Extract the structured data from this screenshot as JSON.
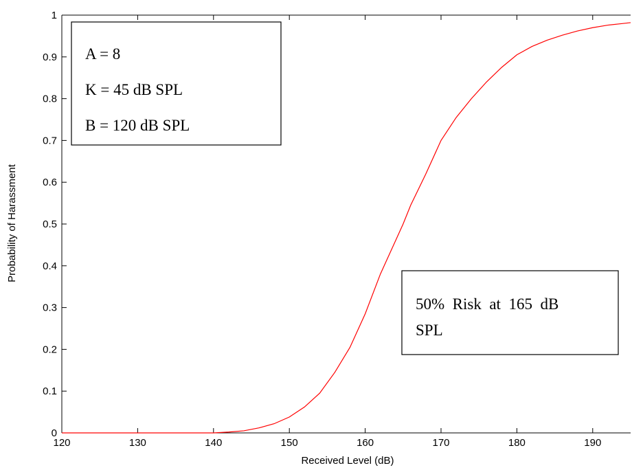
{
  "chart_data": {
    "type": "line",
    "title": "",
    "xlabel": "Received Level (dB)",
    "ylabel": "Probability of Harassment",
    "xlim": [
      120,
      195
    ],
    "ylim": [
      0,
      1
    ],
    "xticks": [
      120,
      130,
      140,
      150,
      160,
      170,
      180,
      190
    ],
    "yticks": [
      0,
      0.1,
      0.2,
      0.3,
      0.4,
      0.5,
      0.6,
      0.7,
      0.8,
      0.9,
      1
    ],
    "xtick_labels": [
      "120",
      "130",
      "140",
      "150",
      "160",
      "170",
      "180",
      "190"
    ],
    "ytick_labels": [
      "0",
      "0.1",
      "0.2",
      "0.3",
      "0.4",
      "0.5",
      "0.6",
      "0.7",
      "0.8",
      "0.9",
      "1"
    ],
    "grid": false,
    "series": [
      {
        "color": "#ff0000",
        "x": [
          120,
          125,
          130,
          135,
          140,
          142,
          144,
          146,
          148,
          150,
          152,
          154,
          156,
          158,
          160,
          162,
          164,
          165,
          166,
          168,
          170,
          172,
          174,
          176,
          178,
          180,
          182,
          184,
          186,
          188,
          190,
          192,
          194,
          195
        ],
        "y": [
          0.0,
          0.0,
          0.0,
          0.0,
          0.0,
          0.002,
          0.005,
          0.012,
          0.022,
          0.038,
          0.062,
          0.095,
          0.145,
          0.205,
          0.285,
          0.38,
          0.46,
          0.5,
          0.545,
          0.62,
          0.7,
          0.755,
          0.8,
          0.84,
          0.875,
          0.905,
          0.925,
          0.94,
          0.952,
          0.962,
          0.97,
          0.976,
          0.98,
          0.982
        ]
      }
    ],
    "annotations": [
      {
        "id": "params",
        "lines": [
          "A = 8",
          "K = 45 dB SPL",
          "B = 120 dB SPL"
        ]
      },
      {
        "id": "risk",
        "lines": [
          "50%  Risk  at  165  dB",
          "SPL"
        ]
      }
    ]
  }
}
